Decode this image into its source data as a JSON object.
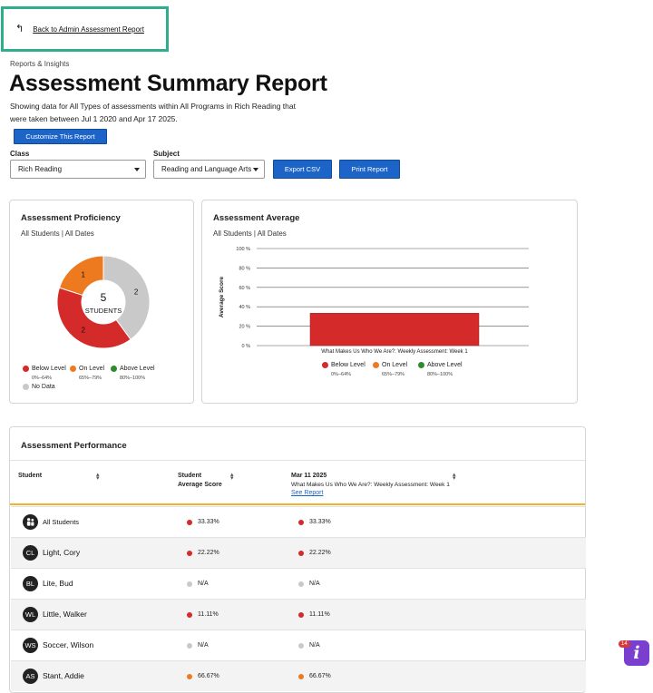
{
  "nav": {
    "back_label": "Back to Admin Assessment Report",
    "back_icon": "return-arrow-icon"
  },
  "breadcrumb": "Reports & Insights",
  "page_title": "Assessment Summary Report",
  "description": "Showing data for All Types of assessments within All Programs in Rich Reading that were taken between Jul 1 2020 and Apr 17 2025.",
  "buttons": {
    "customize": "Customize This Report",
    "export": "Export CSV",
    "print": "Print Report"
  },
  "filters": {
    "class_label": "Class",
    "class_value": "Rich Reading",
    "subject_label": "Subject",
    "subject_value": "Reading and Language Arts"
  },
  "colors": {
    "below": "#d42a2a",
    "on": "#ee7a1f",
    "above": "#2e8b2e",
    "none": "#c9c9c9",
    "accent": "#1d64c8",
    "header_rule": "#f0b429"
  },
  "proficiency": {
    "title": "Assessment Proficiency",
    "subtitle": "All Students  |  All Dates",
    "center_count": "5",
    "center_label": "STUDENTS",
    "legend": {
      "below": {
        "label": "Below Level",
        "range": "0%–64%"
      },
      "on": {
        "label": "On Level",
        "range": "65%–79%"
      },
      "above": {
        "label": "Above Level",
        "range": "80%–100%"
      },
      "none": {
        "label": "No Data"
      }
    }
  },
  "average": {
    "title": "Assessment Average",
    "subtitle": "All Students  |  All Dates",
    "ylabel": "Average Score",
    "legend": {
      "below": {
        "label": "Below Level",
        "range": "0%–64%"
      },
      "on": {
        "label": "On Level",
        "range": "65%–79%"
      },
      "above": {
        "label": "Above Level",
        "range": "80%–100%"
      }
    }
  },
  "chart_data": [
    {
      "type": "pie",
      "categories": [
        "On Level",
        "No Data",
        "Below Level",
        "Below Level"
      ],
      "values": [
        1,
        2,
        2,
        0
      ],
      "slices": [
        {
          "label": "1",
          "value": 1,
          "level": "on"
        },
        {
          "label": "2",
          "value": 2,
          "level": "none"
        },
        {
          "label": "2",
          "value": 2,
          "level": "below"
        }
      ],
      "title": "Assessment Proficiency"
    },
    {
      "type": "bar",
      "categories": [
        "What Makes Us Who We Are?: Weekly Assessment: Week 1"
      ],
      "values": [
        33.33
      ],
      "title": "Assessment Average",
      "ylabel": "Average Score",
      "ylim": [
        0,
        100
      ],
      "yticks": [
        "0 %",
        "20 %",
        "40 %",
        "60 %",
        "80 %",
        "100 %"
      ],
      "grid": true
    }
  ],
  "performance": {
    "title": "Assessment Performance",
    "col_student": "Student",
    "col_avg_line1": "Student",
    "col_avg_line2": "Average Score",
    "col_date": "Mar 11 2025",
    "col_assessment": "What Makes Us Who We Are?: Weekly Assessment: Week 1",
    "see_report": "See Report",
    "rows": [
      {
        "initials": "",
        "name": "All Students",
        "avg": "33.33%",
        "score": "33.33%",
        "level": "below"
      },
      {
        "initials": "CL",
        "name": "Light, Cory",
        "avg": "22.22%",
        "score": "22.22%",
        "level": "below"
      },
      {
        "initials": "BL",
        "name": "Lite, Bud",
        "avg": "N/A",
        "score": "N/A",
        "level": "none"
      },
      {
        "initials": "WL",
        "name": "Little, Walker",
        "avg": "11.11%",
        "score": "11.11%",
        "level": "below"
      },
      {
        "initials": "WS",
        "name": "Soccer, Wilson",
        "avg": "N/A",
        "score": "N/A",
        "level": "none"
      },
      {
        "initials": "AS",
        "name": "Stant, Addie",
        "avg": "66.67%",
        "score": "66.67%",
        "level": "on"
      }
    ]
  },
  "help_widget": {
    "count": "14",
    "glyph": "i"
  }
}
